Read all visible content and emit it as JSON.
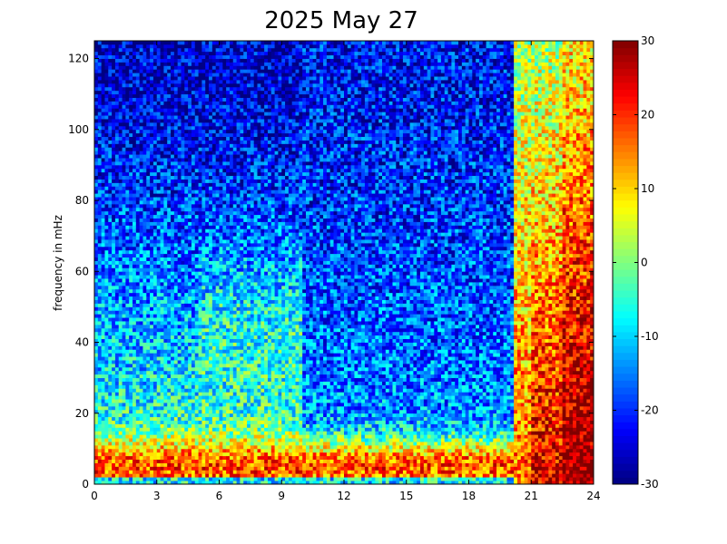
{
  "chart_data": {
    "type": "heatmap",
    "title": "2025 May 27",
    "xlabel": "",
    "ylabel": "frequency in mHz",
    "xlim": [
      0,
      24
    ],
    "ylim": [
      0,
      125
    ],
    "x_ticks": [
      0,
      3,
      6,
      9,
      12,
      15,
      18,
      21,
      24
    ],
    "y_ticks": [
      0,
      20,
      40,
      60,
      80,
      100,
      120
    ],
    "colorbar": {
      "min": -30,
      "max": 30,
      "ticks": [
        -30,
        -20,
        -10,
        0,
        10,
        20,
        30
      ],
      "colormap": "jet"
    },
    "grid": false,
    "value_profile": {
      "description_note": "",
      "low_freq_band_value": 18,
      "mid_freq_value_0_to_10h": 0,
      "high_freq_value_0_to_10h": -25,
      "mid_freq_value_10_to_20h": -12,
      "high_freq_value_10_to_20h": -22,
      "low_freq_value_20_to_24h": 25,
      "mid_freq_value_20_to_24h": 10,
      "high_freq_value_20_to_24h": 2,
      "transition_hour": 20.2
    }
  }
}
